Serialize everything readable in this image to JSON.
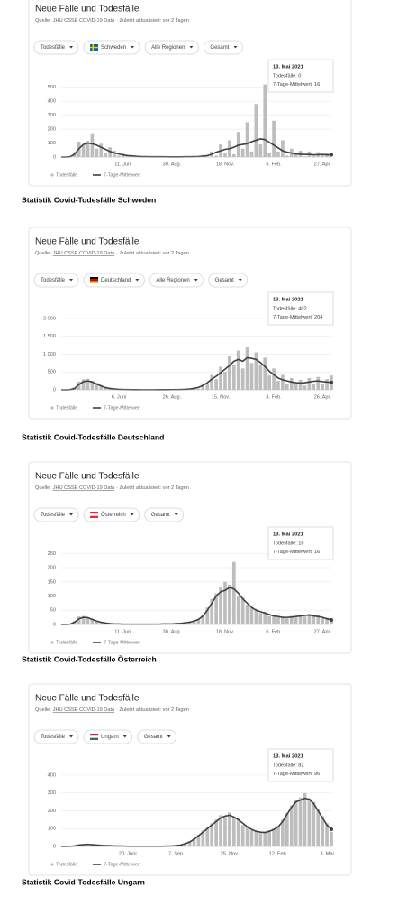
{
  "chart_data": [
    {
      "type": "combo",
      "title": "Neue Fälle und Todesfälle",
      "source_prefix": "Quelle:",
      "source": "JHU CSSE COVID-19 Data",
      "updated": "· Zuletzt aktualisiert: vor 2 Tagen",
      "filters": [
        "Todesfälle",
        "Schweden",
        "Alle Regionen",
        "Gesamt"
      ],
      "tooltip": {
        "date": "13. Mai 2021",
        "lines": [
          "Todesfälle: 0",
          "7-Tage-Mittelwert: 16"
        ]
      },
      "caption": "Statistik Covid-Todesfälle Schweden",
      "categories": [
        null,
        null,
        null,
        null,
        null,
        null,
        null,
        null,
        null,
        null,
        null,
        null,
        null,
        null,
        "11. Juni",
        null,
        null,
        null,
        null,
        null,
        null,
        null,
        null,
        null,
        null,
        "30. Aug.",
        null,
        null,
        null,
        null,
        null,
        null,
        null,
        null,
        null,
        null,
        null,
        "18. Nov.",
        null,
        null,
        null,
        null,
        null,
        null,
        null,
        null,
        null,
        null,
        "6. Feb.",
        null,
        null,
        null,
        null,
        null,
        null,
        null,
        null,
        null,
        null,
        "27. Apr.",
        null,
        null
      ],
      "ylim": [
        0,
        550
      ],
      "yticks": [
        0,
        100,
        200,
        300,
        400,
        500
      ],
      "grid": true,
      "series": [
        {
          "name": "Todesfälle",
          "color": "#bdbdbd",
          "values": [
            0,
            0,
            4,
            35,
            110,
            85,
            115,
            170,
            60,
            95,
            30,
            70,
            45,
            10,
            25,
            5,
            12,
            0,
            6,
            0,
            4,
            2,
            0,
            5,
            0,
            3,
            0,
            2,
            4,
            0,
            6,
            2,
            15,
            4,
            40,
            10,
            90,
            30,
            120,
            20,
            180,
            60,
            250,
            40,
            380,
            90,
            520,
            30,
            260,
            40,
            120,
            10,
            60,
            20,
            45,
            5,
            40,
            8,
            35,
            10,
            30,
            0
          ]
        },
        {
          "name": "7-Tage-Mittelwert",
          "color": "#3c4043",
          "values": [
            0,
            0,
            2,
            20,
            60,
            90,
            100,
            95,
            85,
            70,
            55,
            40,
            30,
            22,
            15,
            10,
            8,
            5,
            3,
            3,
            2,
            2,
            2,
            2,
            1,
            1,
            1,
            1,
            2,
            2,
            3,
            4,
            6,
            10,
            20,
            35,
            45,
            55,
            60,
            70,
            85,
            90,
            95,
            110,
            120,
            130,
            125,
            105,
            85,
            65,
            45,
            35,
            28,
            22,
            20,
            18,
            18,
            16,
            17,
            18,
            16,
            16
          ]
        }
      ]
    },
    {
      "type": "combo",
      "title": "Neue Fälle und Todesfälle",
      "source_prefix": "Quelle:",
      "source": "JHU CSSE COVID-19 Data",
      "updated": "· Zuletzt aktualisiert: vor 2 Tagen",
      "filters": [
        "Todesfälle",
        "Deutschland",
        "Alle Regionen",
        "Gesamt"
      ],
      "tooltip": {
        "date": "13. Mai 2021",
        "lines": [
          "Todesfälle: 402",
          "7-Tage-Mittelwert: 204"
        ]
      },
      "caption": "Statistik Covid-Todesfälle Deutschland",
      "categories": [
        null,
        null,
        null,
        null,
        null,
        null,
        null,
        null,
        null,
        null,
        null,
        null,
        null,
        "6. Juni",
        null,
        null,
        null,
        null,
        null,
        null,
        null,
        null,
        null,
        null,
        null,
        "26. Aug.",
        null,
        null,
        null,
        null,
        null,
        null,
        null,
        null,
        null,
        null,
        "15. Nov.",
        null,
        null,
        null,
        null,
        null,
        null,
        null,
        null,
        null,
        null,
        null,
        "4. Feb.",
        null,
        null,
        null,
        null,
        null,
        null,
        null,
        null,
        null,
        null,
        "26. Apr.",
        null,
        null
      ],
      "ylim": [
        0,
        2150
      ],
      "yticks": [
        0,
        500,
        {
          "value": 1000,
          "label": "1 000"
        },
        {
          "value": 1500,
          "label": "1 500"
        },
        {
          "value": 2000,
          "label": "2 000"
        }
      ],
      "grid": true,
      "series": [
        {
          "name": "Todesfälle",
          "color": "#bdbdbd",
          "values": [
            0,
            0,
            8,
            60,
            230,
            300,
            310,
            250,
            200,
            120,
            90,
            30,
            40,
            10,
            18,
            5,
            8,
            2,
            5,
            1,
            6,
            2,
            7,
            1,
            9,
            4,
            12,
            6,
            22,
            18,
            60,
            35,
            180,
            150,
            420,
            300,
            650,
            500,
            950,
            700,
            1100,
            600,
            1200,
            750,
            1050,
            700,
            900,
            400,
            600,
            250,
            420,
            180,
            330,
            150,
            280,
            120,
            330,
            160,
            360,
            170,
            300,
            402
          ]
        },
        {
          "name": "7-Tage-Mittelwert",
          "color": "#3c4043",
          "values": [
            0,
            0,
            5,
            40,
            150,
            230,
            250,
            220,
            160,
            110,
            60,
            40,
            25,
            15,
            10,
            8,
            5,
            4,
            3,
            3,
            3,
            3,
            4,
            4,
            5,
            6,
            8,
            10,
            15,
            25,
            40,
            70,
            120,
            200,
            300,
            380,
            480,
            580,
            680,
            800,
            850,
            800,
            900,
            880,
            850,
            760,
            650,
            520,
            420,
            330,
            280,
            250,
            220,
            200,
            190,
            200,
            220,
            240,
            250,
            230,
            220,
            204
          ]
        }
      ]
    },
    {
      "type": "combo",
      "title": "Neue Fälle und Todesfälle",
      "source_prefix": "Quelle:",
      "source": "JHU CSSE COVID-19 Data",
      "updated": "· Zuletzt aktualisiert: vor 2 Tagen",
      "filters": [
        "Todesfälle",
        "Österreich",
        "Gesamt"
      ],
      "tooltip": {
        "date": "13. Mai 2021",
        "lines": [
          "Todesfälle: 16",
          "7-Tage-Mittelwert: 16"
        ]
      },
      "caption": "Statistik Covid-Todesfälle Österreich",
      "categories": [
        null,
        null,
        null,
        null,
        null,
        null,
        null,
        null,
        null,
        null,
        null,
        null,
        null,
        null,
        "11. Juni",
        null,
        null,
        null,
        null,
        null,
        null,
        null,
        null,
        null,
        null,
        "30. Aug.",
        null,
        null,
        null,
        null,
        null,
        null,
        null,
        null,
        null,
        null,
        null,
        "18. Nov.",
        null,
        null,
        null,
        null,
        null,
        null,
        null,
        null,
        null,
        null,
        "6. Feb.",
        null,
        null,
        null,
        null,
        null,
        null,
        null,
        null,
        null,
        null,
        "27. Apr.",
        null,
        null
      ],
      "ylim": [
        0,
        270
      ],
      "yticks": [
        0,
        50,
        100,
        150,
        200,
        250
      ],
      "grid": true,
      "series": [
        {
          "name": "Todesfälle",
          "color": "#bdbdbd",
          "values": [
            0,
            0,
            2,
            12,
            28,
            30,
            26,
            20,
            10,
            9,
            4,
            3,
            2,
            3,
            1,
            0,
            2,
            1,
            1,
            0,
            2,
            1,
            2,
            3,
            1,
            2,
            4,
            5,
            7,
            10,
            15,
            20,
            35,
            60,
            90,
            110,
            130,
            150,
            140,
            220,
            100,
            95,
            70,
            60,
            55,
            40,
            45,
            30,
            35,
            25,
            28,
            22,
            30,
            25,
            35,
            28,
            38,
            30,
            32,
            22,
            24,
            16
          ]
        },
        {
          "name": "7-Tage-Mittelwert",
          "color": "#3c4043",
          "values": [
            0,
            0,
            1,
            8,
            20,
            25,
            24,
            18,
            12,
            8,
            5,
            3,
            2,
            2,
            1,
            1,
            1,
            1,
            1,
            1,
            1,
            1,
            1,
            2,
            2,
            2,
            3,
            4,
            6,
            8,
            12,
            18,
            30,
            50,
            75,
            100,
            115,
            120,
            130,
            125,
            110,
            90,
            75,
            60,
            50,
            45,
            40,
            35,
            30,
            28,
            25,
            25,
            26,
            28,
            30,
            32,
            33,
            30,
            28,
            25,
            20,
            16
          ]
        }
      ]
    },
    {
      "type": "combo",
      "title": "Neue Fälle und Todesfälle",
      "source_prefix": "Quelle:",
      "source": "JHU CSSE COVID-19 Data",
      "updated": "· Zuletzt aktualisiert: vor 2 Tagen",
      "filters": [
        "Todesfälle",
        "Ungarn",
        "Gesamt"
      ],
      "tooltip": {
        "date": "13. Mai 2021",
        "lines": [
          "Todesfälle: 82",
          "7-Tage-Mittelwert: 96"
        ]
      },
      "caption": "Statistik Covid-Todesfälle Ungarn",
      "categories": [
        null,
        null,
        null,
        null,
        null,
        null,
        null,
        null,
        null,
        null,
        null,
        null,
        null,
        null,
        null,
        "20. Juni",
        null,
        null,
        null,
        null,
        null,
        null,
        null,
        null,
        null,
        null,
        "7. Sep.",
        null,
        null,
        null,
        null,
        null,
        null,
        null,
        null,
        null,
        null,
        null,
        "25. Nov.",
        null,
        null,
        null,
        null,
        null,
        null,
        null,
        null,
        null,
        null,
        "12. Feb.",
        null,
        null,
        null,
        null,
        null,
        null,
        null,
        null,
        null,
        null,
        "3. Mai",
        null
      ],
      "ylim": [
        0,
        430
      ],
      "yticks": [
        0,
        100,
        200,
        300,
        400
      ],
      "grid": true,
      "series": [
        {
          "name": "Todesfälle",
          "color": "#bdbdbd",
          "values": [
            0,
            0,
            2,
            5,
            10,
            12,
            14,
            12,
            7,
            6,
            5,
            3,
            4,
            2,
            3,
            1,
            2,
            0,
            1,
            2,
            0,
            1,
            2,
            1,
            3,
            4,
            6,
            10,
            18,
            30,
            45,
            65,
            90,
            105,
            130,
            150,
            175,
            165,
            190,
            160,
            155,
            120,
            115,
            90,
            88,
            75,
            82,
            90,
            100,
            115,
            150,
            190,
            230,
            260,
            275,
            300,
            270,
            250,
            210,
            170,
            130,
            82
          ]
        },
        {
          "name": "7-Tage-Mittelwert",
          "color": "#3c4043",
          "values": [
            0,
            0,
            1,
            3,
            8,
            10,
            12,
            10,
            8,
            6,
            5,
            4,
            3,
            2,
            2,
            1,
            1,
            1,
            1,
            1,
            1,
            1,
            1,
            1,
            2,
            3,
            5,
            8,
            15,
            25,
            40,
            60,
            80,
            100,
            120,
            140,
            160,
            170,
            175,
            165,
            150,
            130,
            110,
            95,
            85,
            80,
            78,
            85,
            95,
            110,
            140,
            180,
            220,
            250,
            260,
            270,
            265,
            240,
            200,
            160,
            120,
            96
          ]
        }
      ]
    }
  ]
}
